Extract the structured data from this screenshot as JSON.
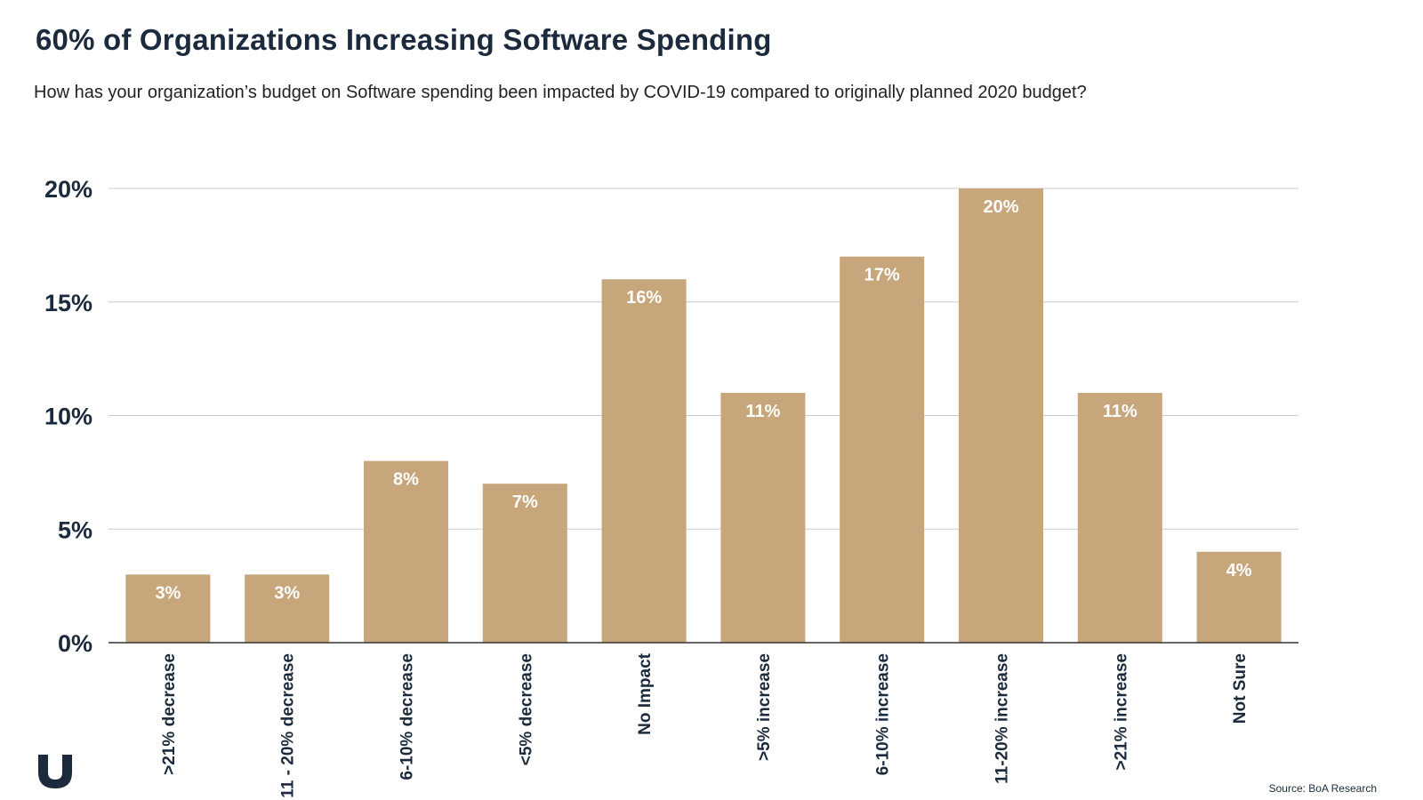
{
  "title": "60% of Organizations Increasing Software Spending",
  "subtitle": "How has your organization’s budget on Software spending been impacted by COVID-19 compared to originally planned 2020 budget?",
  "source": "Source: BoA Research",
  "logo_icon": "v-shield-logo-icon",
  "colors": {
    "bar": "#c8a67c",
    "text": "#1b2a3c",
    "grid": "#cccccc",
    "axis": "#333333",
    "label": "#ffffff"
  },
  "chart_data": {
    "type": "bar",
    "categories": [
      ">21% decrease",
      "11 - 20% decrease",
      "6-10% decrease",
      "<5% decrease",
      "No Impact",
      ">5% increase",
      "6-10% increase",
      "11-20% increase",
      ">21% increase",
      "Not Sure"
    ],
    "values": [
      3,
      3,
      8,
      7,
      16,
      11,
      17,
      20,
      11,
      4
    ],
    "data_labels": [
      "3%",
      "3%",
      "8%",
      "7%",
      "16%",
      "11%",
      "17%",
      "20%",
      "11%",
      "4%"
    ],
    "yticks": [
      0,
      5,
      10,
      15,
      20
    ],
    "ytick_labels": [
      "0%",
      "5%",
      "10%",
      "15%",
      "20%"
    ],
    "ylim": [
      0,
      20
    ],
    "grid": true,
    "legend": "none"
  }
}
